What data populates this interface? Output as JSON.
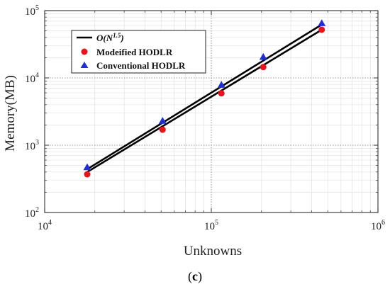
{
  "caption": {
    "open": "(",
    "letter": "c",
    "close": ")"
  },
  "chart_data": {
    "type": "scatter",
    "title": "",
    "xlabel": "Unknowns",
    "ylabel": "Memory(MB)",
    "x_scale": "log",
    "y_scale": "log",
    "xlim": [
      10000,
      1000000
    ],
    "ylim": [
      100,
      100000
    ],
    "x_ticks": [
      {
        "value": 10000,
        "base": "10",
        "exp": "4"
      },
      {
        "value": 100000,
        "base": "10",
        "exp": "5"
      },
      {
        "value": 1000000,
        "base": "10",
        "exp": "6"
      }
    ],
    "y_ticks": [
      {
        "value": 100,
        "base": "10",
        "exp": "2"
      },
      {
        "value": 1000,
        "base": "10",
        "exp": "3"
      },
      {
        "value": 10000,
        "base": "10",
        "exp": "4"
      },
      {
        "value": 100000,
        "base": "10",
        "exp": "5"
      }
    ],
    "grid": true,
    "legend_position": "top-left",
    "series": [
      {
        "name": "Modeified HODLR",
        "marker": "circle",
        "color": "#e8141b",
        "x": [
          18000,
          51000,
          115000,
          205000,
          460000
        ],
        "y": [
          370,
          1700,
          5900,
          14500,
          52000
        ]
      },
      {
        "name": "Conventional HODLR",
        "marker": "triangle",
        "color": "#1f2fd6",
        "x": [
          18000,
          51000,
          115000,
          205000,
          460000
        ],
        "y": [
          470,
          2300,
          7900,
          20500,
          65000
        ]
      }
    ],
    "fit_lines": [
      {
        "legend": "O(N1.5)",
        "series": 0,
        "color": "#000000",
        "x": [
          18000,
          460000
        ],
        "y": [
          400,
          52000
        ]
      },
      {
        "legend": "",
        "series": 1,
        "color": "#000000",
        "x": [
          18000,
          460000
        ],
        "y": [
          440,
          62000
        ]
      }
    ],
    "legend_fit": {
      "prefix": "O(N",
      "exp": "1.5",
      "suffix": ")"
    }
  }
}
